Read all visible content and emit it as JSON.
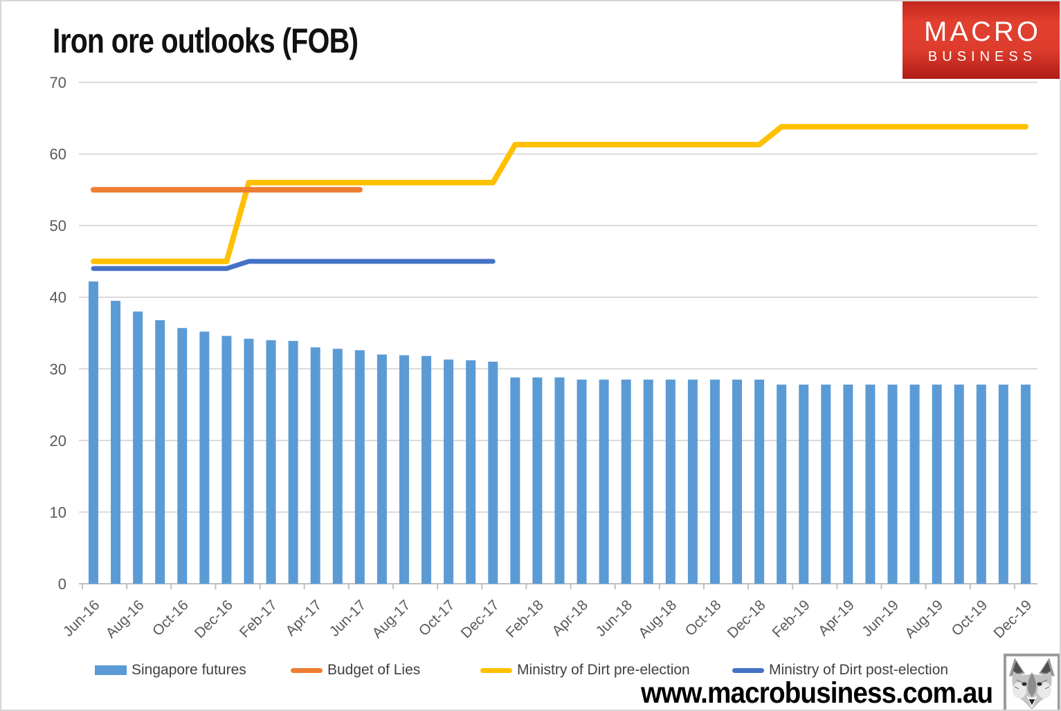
{
  "header": {
    "title": "Iron ore outlooks (FOB)",
    "logo": {
      "line1": "MACRO",
      "line2": "BUSINESS",
      "bg_color": "#d8301f"
    }
  },
  "chart_data": {
    "type": "bar",
    "title": "Iron ore outlooks (FOB)",
    "ylim": [
      0,
      70
    ],
    "ytick_step": 10,
    "grid": true,
    "grid_color": "#d9d9d9",
    "axis_color": "#bfbfbf",
    "tick_label_color": "#595959",
    "legend_position": "bottom",
    "x_label_interval": 2,
    "categories": [
      "Jun-16",
      "Jul-16",
      "Aug-16",
      "Sep-16",
      "Oct-16",
      "Nov-16",
      "Dec-16",
      "Jan-17",
      "Feb-17",
      "Mar-17",
      "Apr-17",
      "May-17",
      "Jun-17",
      "Jul-17",
      "Aug-17",
      "Sep-17",
      "Oct-17",
      "Nov-17",
      "Dec-17",
      "Jan-18",
      "Feb-18",
      "Mar-18",
      "Apr-18",
      "May-18",
      "Jun-18",
      "Jul-18",
      "Aug-18",
      "Sep-18",
      "Oct-18",
      "Nov-18",
      "Dec-18",
      "Jan-19",
      "Feb-19",
      "Mar-19",
      "Apr-19",
      "May-19",
      "Jun-19",
      "Jul-19",
      "Aug-19",
      "Sep-19",
      "Oct-19",
      "Nov-19",
      "Dec-19"
    ],
    "series": [
      {
        "name": "Singapore futures",
        "type": "bar",
        "color": "#5B9BD5",
        "values": [
          42.2,
          39.5,
          38.0,
          36.8,
          35.7,
          35.2,
          34.6,
          34.2,
          34.0,
          33.9,
          33.0,
          32.8,
          32.6,
          32.0,
          31.9,
          31.8,
          31.3,
          31.2,
          31.0,
          28.8,
          28.8,
          28.8,
          28.5,
          28.5,
          28.5,
          28.5,
          28.5,
          28.5,
          28.5,
          28.5,
          28.5,
          27.8,
          27.8,
          27.8,
          27.8,
          27.8,
          27.8,
          27.8,
          27.8,
          27.8,
          27.8,
          27.8,
          27.8
        ]
      },
      {
        "name": "Budget of Lies",
        "type": "line",
        "color": "#ED7D31",
        "values": [
          55,
          55,
          55,
          55,
          55,
          55,
          55,
          55,
          55,
          55,
          55,
          55,
          55,
          null,
          null,
          null,
          null,
          null,
          null,
          null,
          null,
          null,
          null,
          null,
          null,
          null,
          null,
          null,
          null,
          null,
          null,
          null,
          null,
          null,
          null,
          null,
          null,
          null,
          null,
          null,
          null,
          null,
          null
        ]
      },
      {
        "name": "Ministry of Dirt pre-election",
        "type": "line",
        "color": "#FFC000",
        "values": [
          45,
          45,
          45,
          45,
          45,
          45,
          45,
          56,
          56,
          56,
          56,
          56,
          56,
          56,
          56,
          56,
          56,
          56,
          56,
          61.3,
          61.3,
          61.3,
          61.3,
          61.3,
          61.3,
          61.3,
          61.3,
          61.3,
          61.3,
          61.3,
          61.3,
          63.8,
          63.8,
          63.8,
          63.8,
          63.8,
          63.8,
          63.8,
          63.8,
          63.8,
          63.8,
          63.8,
          63.8
        ]
      },
      {
        "name": "Ministry of Dirt post-election",
        "type": "line",
        "color": "#4472C4",
        "values": [
          44,
          44,
          44,
          44,
          44,
          44,
          44,
          45,
          45,
          45,
          45,
          45,
          45,
          45,
          45,
          45,
          45,
          45,
          45,
          null,
          null,
          null,
          null,
          null,
          null,
          null,
          null,
          null,
          null,
          null,
          null,
          null,
          null,
          null,
          null,
          null,
          null,
          null,
          null,
          null,
          null,
          null,
          null
        ]
      }
    ],
    "line_draw_order": [
      "Ministry of Dirt pre-election",
      "Ministry of Dirt post-election",
      "Budget of Lies"
    ]
  },
  "legend": {
    "items": [
      {
        "label": "Singapore futures",
        "color": "#5B9BD5",
        "swatch": "bar"
      },
      {
        "label": "Budget of Lies",
        "color": "#ED7D31",
        "swatch": "line"
      },
      {
        "label": "Ministry of Dirt pre-election",
        "color": "#FFC000",
        "swatch": "line"
      },
      {
        "label": "Ministry of Dirt post-election",
        "color": "#4472C4",
        "swatch": "line"
      }
    ]
  },
  "footer": {
    "url": "www.macrobusiness.com.au"
  }
}
